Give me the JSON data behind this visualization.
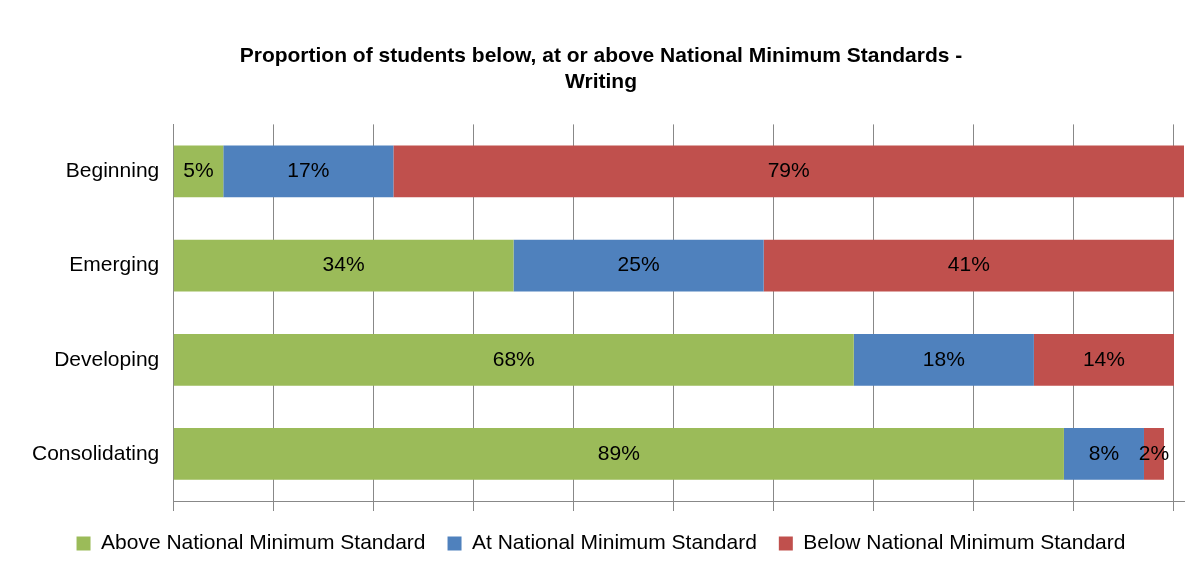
{
  "chart_data": {
    "type": "bar",
    "orientation": "horizontal",
    "stacked": true,
    "title": [
      "Proportion of students below, at or above National Minimum Standards -",
      "Writing"
    ],
    "categories": [
      "Beginning",
      "Emerging",
      "Developing",
      "Consolidating"
    ],
    "series": [
      {
        "name": "Above National Minimum Standard",
        "color": "#9bbb59",
        "values": [
          5,
          34,
          68,
          89
        ],
        "value_labels": [
          "5%",
          "34%",
          "68%",
          "89%"
        ]
      },
      {
        "name": "At National Minimum Standard",
        "color": "#4f81bd",
        "values": [
          17,
          25,
          18,
          8
        ],
        "value_labels": [
          "17%",
          "25%",
          "18%",
          "8%"
        ]
      },
      {
        "name": "Below National Minimum Standard",
        "color": "#c0504d",
        "values": [
          79,
          41,
          14,
          2
        ],
        "value_labels": [
          "79%",
          "41%",
          "14%",
          "2%"
        ]
      }
    ],
    "xlim": [
      0,
      101
    ],
    "xticks": [
      {
        "value": 0,
        "label": null
      },
      {
        "value": 10,
        "label": null
      },
      {
        "value": 20,
        "label": null
      },
      {
        "value": 30,
        "label": null
      },
      {
        "value": 40,
        "label": null
      },
      {
        "value": 50,
        "label": null
      },
      {
        "value": 60,
        "label": null
      },
      {
        "value": 70,
        "label": null
      },
      {
        "value": 80,
        "label": null
      },
      {
        "value": 90,
        "label": null
      },
      {
        "value": 100,
        "label": null
      }
    ],
    "tick_labels": "y",
    "grid": "x",
    "legend": "bottom"
  }
}
